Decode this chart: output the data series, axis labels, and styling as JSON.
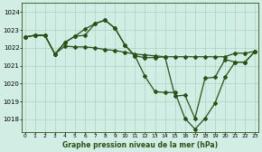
{
  "title": "Graphe pression niveau de la mer (hPa)",
  "yticks": [
    1018,
    1019,
    1020,
    1021,
    1022,
    1023,
    1024
  ],
  "ylim": [
    1017.3,
    1024.5
  ],
  "xlim": [
    -0.3,
    23.3
  ],
  "line_color": "#2a5218",
  "bg_color": "#d2ede4",
  "grid_color": "#aad4c2",
  "series1_y": [
    1022.6,
    1022.7,
    1022.7,
    1021.65,
    1022.1,
    1022.05,
    1022.05,
    1022.0,
    1021.9,
    1021.85,
    1021.75,
    1021.65,
    1021.6,
    1021.55,
    1021.5,
    1021.5,
    1021.5,
    1021.5,
    1021.5,
    1021.5,
    1021.5,
    1021.7,
    1021.7,
    1021.8
  ],
  "series2_y": [
    1022.6,
    1022.7,
    1022.7,
    1021.65,
    1022.3,
    1022.65,
    1023.05,
    1023.35,
    1023.55,
    1023.1,
    1022.15,
    1021.55,
    1021.45,
    1021.45,
    1021.5,
    1019.3,
    1019.35,
    1018.05,
    1020.3,
    1020.35,
    1021.35,
    1021.2,
    1021.2,
    1021.8
  ],
  "series3_y": [
    1022.6,
    1022.7,
    1022.7,
    1021.65,
    1022.3,
    1022.65,
    1022.7,
    1023.35,
    1023.55,
    1023.1,
    1022.15,
    1021.55,
    1020.4,
    1019.55,
    1019.5,
    1019.5,
    1018.05,
    1017.45,
    1018.05,
    1018.9,
    1020.35,
    1021.2,
    1021.2,
    1021.8
  ],
  "marker": "D",
  "markersize": 2.0,
  "linewidth": 0.9
}
